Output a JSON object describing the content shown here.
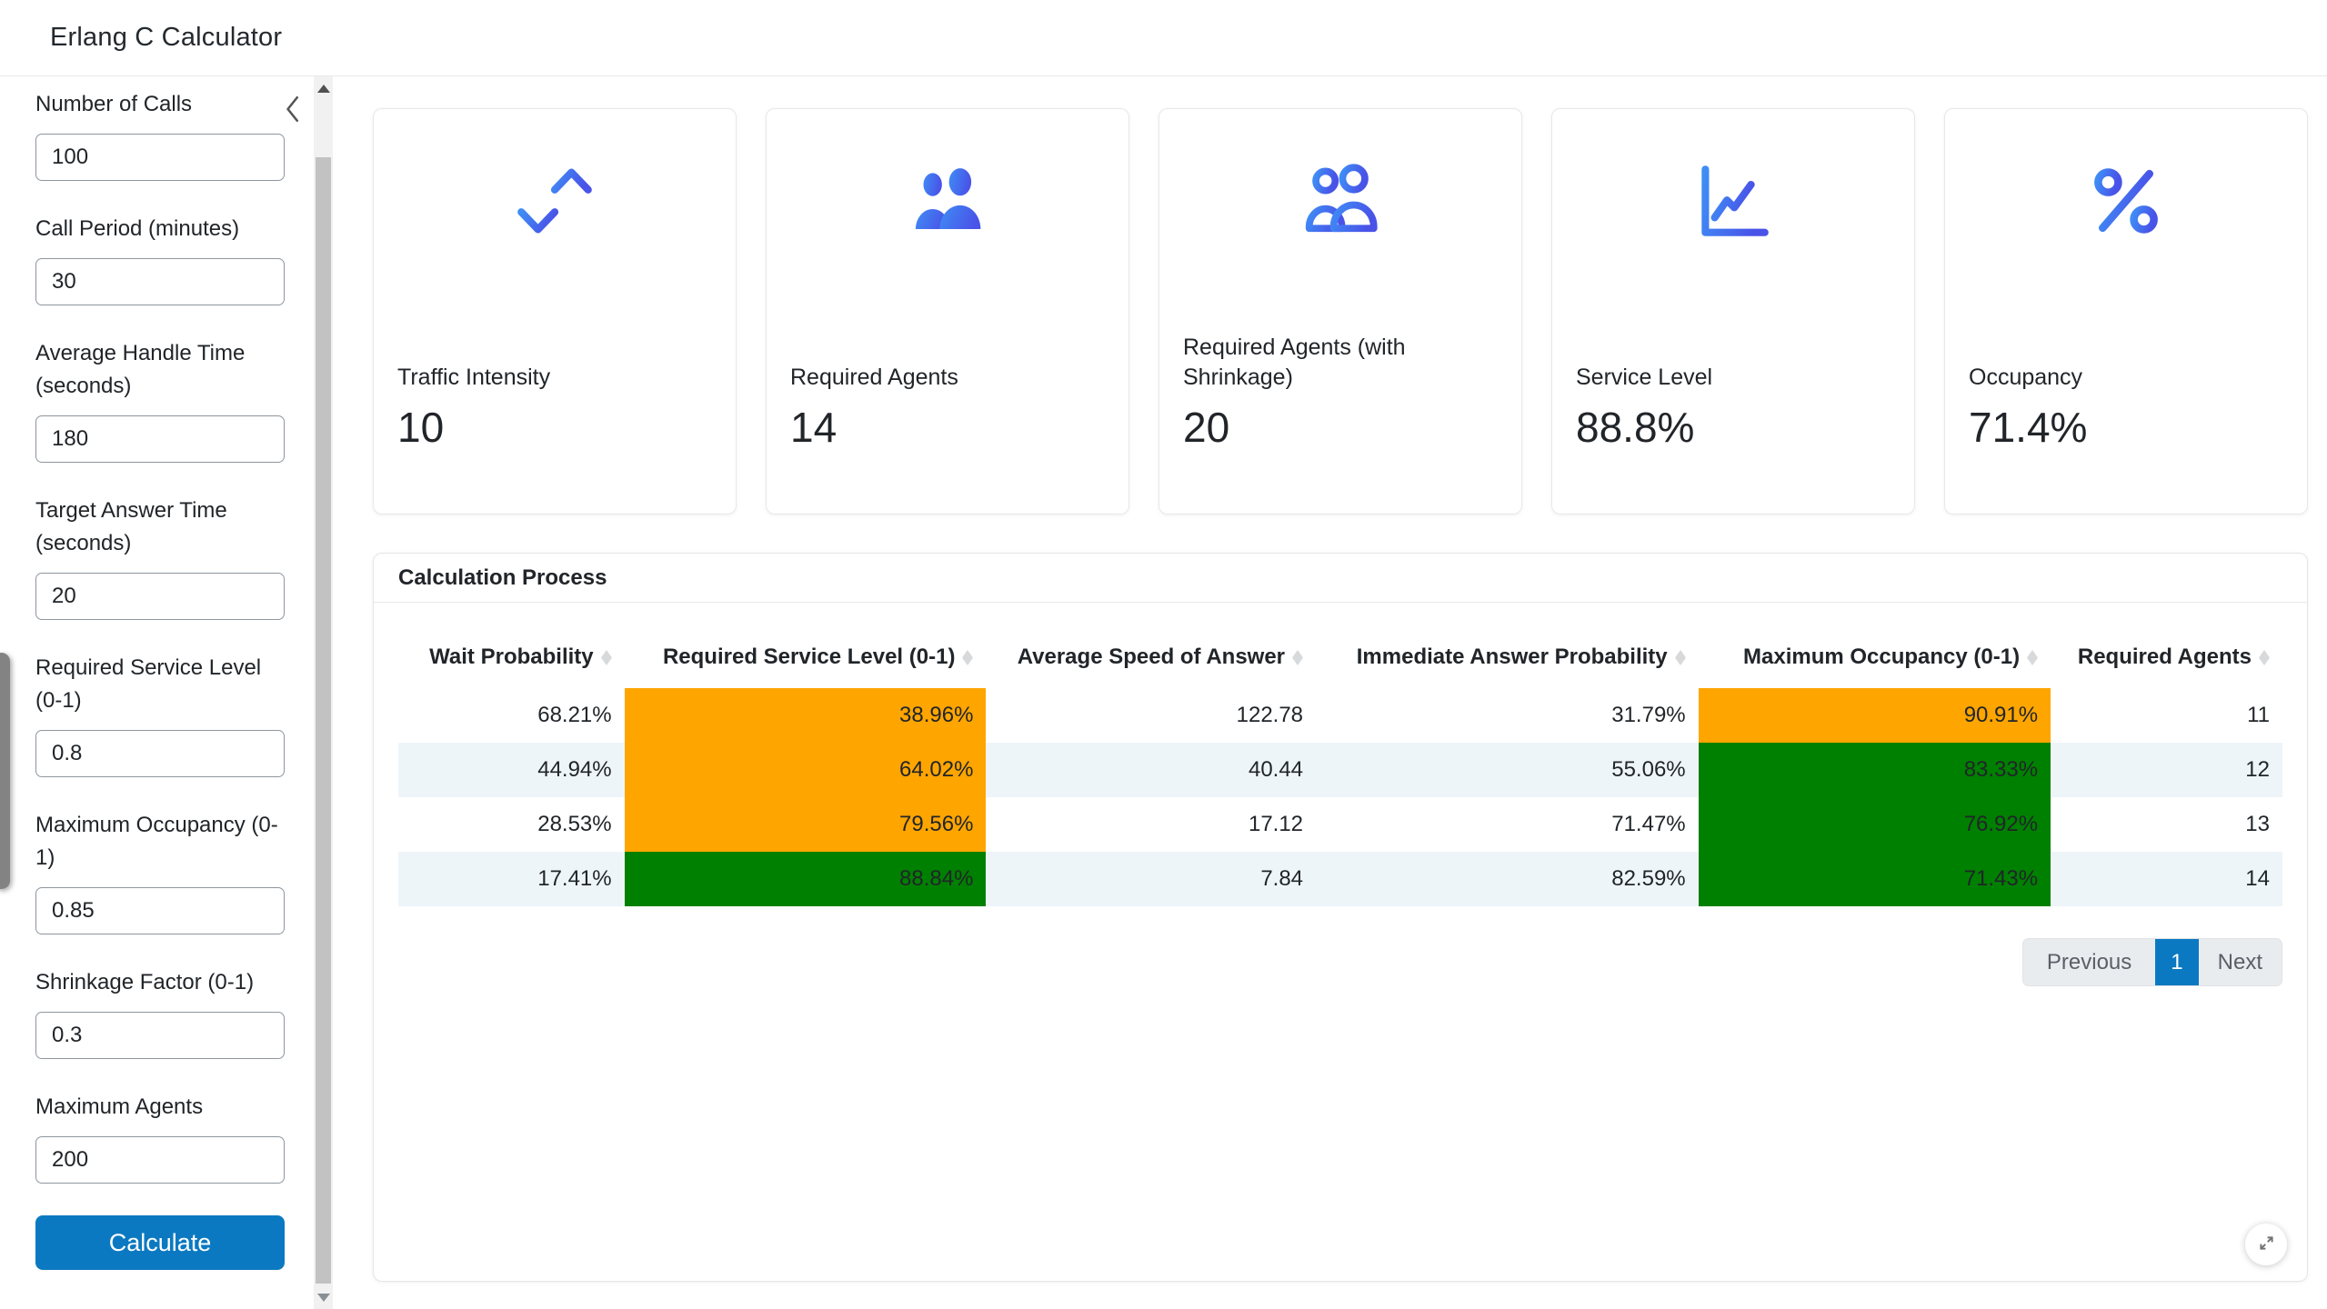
{
  "header": {
    "title": "Erlang C Calculator"
  },
  "sidebar": {
    "fields": [
      {
        "label": "Number of Calls",
        "value": "100"
      },
      {
        "label": "Call Period (minutes)",
        "value": "30"
      },
      {
        "label": "Average Handle Time (seconds)",
        "value": "180"
      },
      {
        "label": "Target Answer Time (seconds)",
        "value": "20"
      },
      {
        "label": "Required Service Level (0-1)",
        "value": "0.8"
      },
      {
        "label": "Maximum Occupancy (0-1)",
        "value": "0.85"
      },
      {
        "label": "Shrinkage Factor (0-1)",
        "value": "0.3"
      },
      {
        "label": "Maximum Agents",
        "value": "200"
      }
    ],
    "calculate_label": "Calculate"
  },
  "cards": [
    {
      "label": "Traffic Intensity",
      "value": "10",
      "icon": "arrow-down-up-icon"
    },
    {
      "label": "Required Agents",
      "value": "14",
      "icon": "people-filled-icon"
    },
    {
      "label": "Required Agents (with Shrinkage)",
      "value": "20",
      "icon": "people-outline-icon"
    },
    {
      "label": "Service Level",
      "value": "88.8%",
      "icon": "line-chart-icon"
    },
    {
      "label": "Occupancy",
      "value": "71.4%",
      "icon": "percent-icon"
    }
  ],
  "panel": {
    "title": "Calculation Process",
    "table": {
      "columns": [
        {
          "key": "wait_probability",
          "label": "Wait Probability"
        },
        {
          "key": "required_service_level",
          "label": "Required Service Level (0-1)"
        },
        {
          "key": "average_speed_of_answer",
          "label": "Average Speed of Answer"
        },
        {
          "key": "immediate_answer_probability",
          "label": "Immediate Answer Probability"
        },
        {
          "key": "maximum_occupancy",
          "label": "Maximum Occupancy (0-1)"
        },
        {
          "key": "required_agents",
          "label": "Required Agents"
        }
      ],
      "rows": [
        {
          "wait_probability": "68.21%",
          "required_service_level": {
            "text": "38.96%",
            "bg": "orange"
          },
          "average_speed_of_answer": "122.78",
          "immediate_answer_probability": "31.79%",
          "maximum_occupancy": {
            "text": "90.91%",
            "bg": "orange"
          },
          "required_agents": "11"
        },
        {
          "wait_probability": "44.94%",
          "required_service_level": {
            "text": "64.02%",
            "bg": "orange"
          },
          "average_speed_of_answer": "40.44",
          "immediate_answer_probability": "55.06%",
          "maximum_occupancy": {
            "text": "83.33%",
            "bg": "green"
          },
          "required_agents": "12"
        },
        {
          "wait_probability": "28.53%",
          "required_service_level": {
            "text": "79.56%",
            "bg": "orange"
          },
          "average_speed_of_answer": "17.12",
          "immediate_answer_probability": "71.47%",
          "maximum_occupancy": {
            "text": "76.92%",
            "bg": "green"
          },
          "required_agents": "13"
        },
        {
          "wait_probability": "17.41%",
          "required_service_level": {
            "text": "88.84%",
            "bg": "green"
          },
          "average_speed_of_answer": "7.84",
          "immediate_answer_probability": "82.59%",
          "maximum_occupancy": {
            "text": "71.43%",
            "bg": "green"
          },
          "required_agents": "14"
        }
      ]
    },
    "pagination": {
      "previous_label": "Previous",
      "current_page": "1",
      "next_label": "Next"
    }
  },
  "colors": {
    "accent_blue": "#0b79c1",
    "row_stripe": "#eef5f9",
    "highlights": {
      "orange": "#FFA500",
      "green": "#008000"
    },
    "icon_gradient_start": "#3f8df5",
    "icon_gradient_end": "#4953e8"
  }
}
